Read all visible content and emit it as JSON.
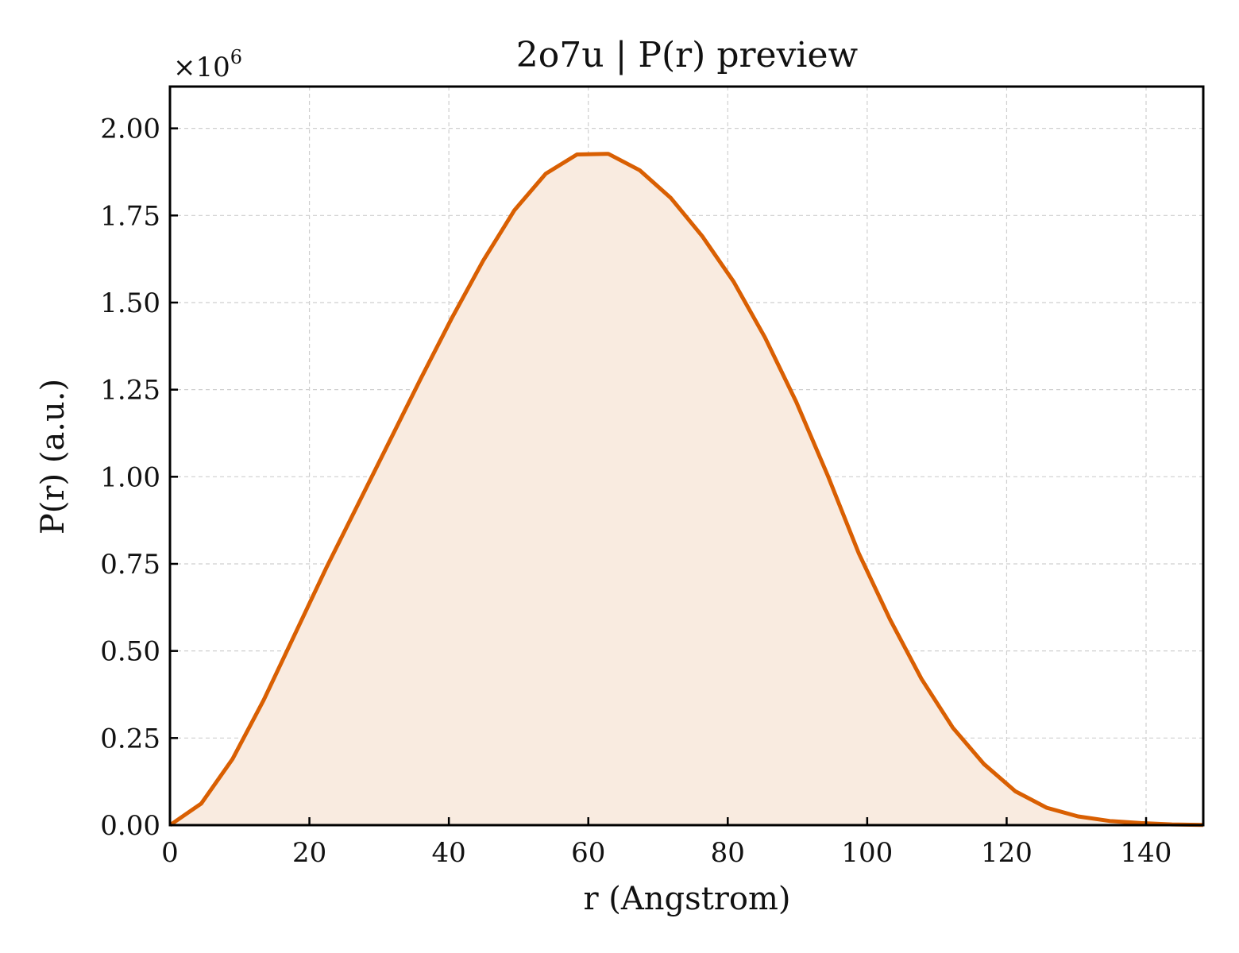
{
  "chart_data": {
    "type": "area",
    "title": "2o7u | P(r) preview",
    "xlabel": "r (Angstrom)",
    "ylabel": "P(r) (a.u.)",
    "y_multiplier": "×10",
    "y_multiplier_exp": "6",
    "xlim": [
      0,
      148.2
    ],
    "ylim": [
      0,
      2.12
    ],
    "xticks": [
      0,
      20,
      40,
      60,
      80,
      100,
      120,
      140
    ],
    "yticks": [
      0.0,
      0.25,
      0.5,
      0.75,
      1.0,
      1.25,
      1.5,
      1.75,
      2.0
    ],
    "ytick_labels": [
      "0.00",
      "0.25",
      "0.50",
      "0.75",
      "1.00",
      "1.25",
      "1.50",
      "1.75",
      "2.00"
    ],
    "grid": true,
    "series": [
      {
        "x": [
          0,
          4.49,
          8.98,
          13.47,
          17.96,
          22.45,
          26.95,
          31.44,
          35.93,
          40.42,
          44.91,
          49.4,
          53.89,
          58.38,
          62.87,
          67.36,
          71.85,
          76.35,
          80.84,
          85.33,
          89.82,
          94.31,
          98.8,
          103.29,
          107.78,
          112.27,
          116.76,
          121.25,
          125.75,
          130.24,
          134.73,
          139.22,
          143.71,
          148.2
        ],
        "y": [
          0.0,
          0.062,
          0.19,
          0.36,
          0.55,
          0.74,
          0.92,
          1.1,
          1.28,
          1.455,
          1.62,
          1.765,
          1.87,
          1.925,
          1.927,
          1.88,
          1.8,
          1.69,
          1.56,
          1.4,
          1.215,
          1.005,
          0.78,
          0.59,
          0.42,
          0.28,
          0.175,
          0.097,
          0.05,
          0.025,
          0.012,
          0.006,
          0.002,
          0.0005
        ],
        "color": "#d95f02",
        "fill_color": "#f9ebe0"
      }
    ]
  }
}
